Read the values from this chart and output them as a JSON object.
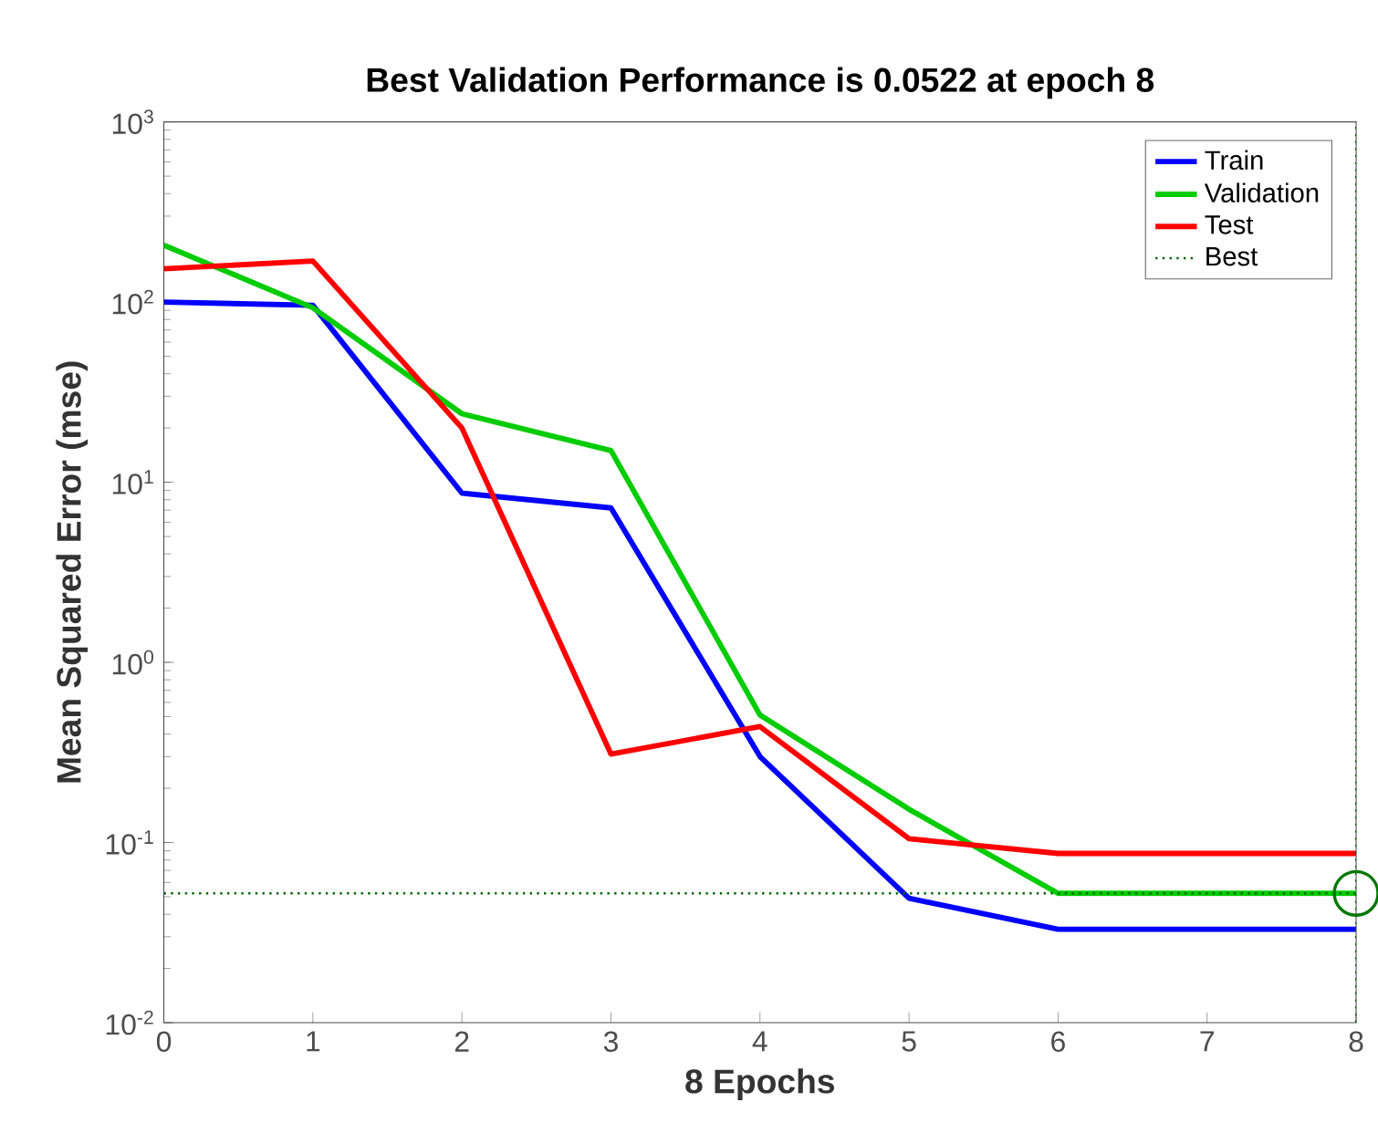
{
  "chart_data": {
    "type": "line",
    "title": "Best Validation Performance is 0.0522 at epoch 8",
    "xlabel": "8 Epochs",
    "ylabel": "Mean Squared Error  (mse)",
    "x": [
      0,
      1,
      2,
      3,
      4,
      5,
      6,
      7,
      8
    ],
    "series": [
      {
        "name": "Train",
        "color": "#0000ff",
        "values": [
          100,
          96,
          8.7,
          7.2,
          0.3,
          0.049,
          0.033,
          0.033,
          0.033
        ]
      },
      {
        "name": "Validation",
        "color": "#00cc00",
        "values": [
          207,
          93,
          24,
          15,
          0.51,
          0.153,
          0.0522,
          0.0522,
          0.0522
        ]
      },
      {
        "name": "Test",
        "color": "#ff0000",
        "values": [
          153,
          169,
          20,
          0.31,
          0.44,
          0.105,
          0.087,
          0.087,
          0.087
        ]
      },
      {
        "type": "scatter",
        "marker": "circle",
        "color": "#007700",
        "x": [
          8
        ],
        "values": [
          0.0522
        ]
      }
    ],
    "ref_lines": [
      {
        "axis": "y",
        "value": 0.0522,
        "label": "Best",
        "color": "#006600",
        "line_style": "dotted"
      },
      {
        "axis": "x",
        "value": 8,
        "color": "#006600",
        "line_style": "dotted"
      }
    ],
    "log": "y",
    "xlim": [
      0,
      8
    ],
    "ylim": [
      0.01,
      1000
    ],
    "xticks": [
      0,
      1,
      2,
      3,
      4,
      5,
      6,
      7,
      8
    ],
    "yticks": [
      {
        "value": 0.01,
        "label": "10$^{-2}$"
      },
      {
        "value": 0.1,
        "label": "10$^{-1}$"
      },
      {
        "value": 1,
        "label": "10$^{0}$"
      },
      {
        "value": 10,
        "label": "10$^{1}$"
      },
      {
        "value": 100,
        "label": "10$^{2}$"
      },
      {
        "value": 1000,
        "label": "10$^{3}$"
      }
    ],
    "legend": "top right",
    "grid": false,
    "line_style": "solid"
  }
}
